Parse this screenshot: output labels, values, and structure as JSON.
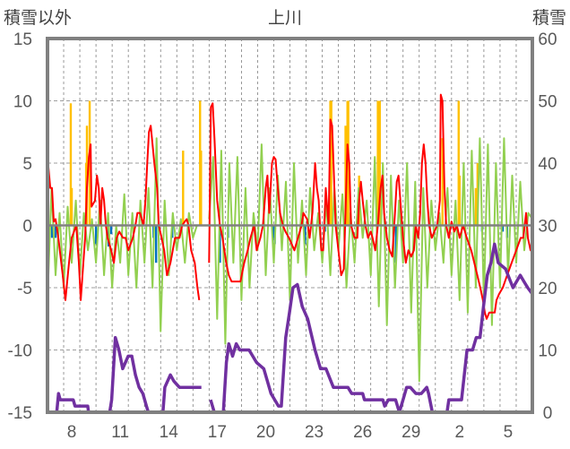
{
  "chart_data": {
    "type": "line",
    "title": "上川",
    "ylabel_left": "積雪以外",
    "ylabel_right": "積雪",
    "ylim_left": [
      -15,
      15
    ],
    "ylim_right": [
      0,
      60
    ],
    "yticks_left": [
      "15",
      "10",
      "5",
      "0",
      "-5",
      "-10",
      "-15"
    ],
    "yticks_right": [
      "60",
      "50",
      "40",
      "30",
      "20",
      "10",
      "0"
    ],
    "xlim_days": [
      0,
      30
    ],
    "xticks": [
      {
        "d": 1.5,
        "label": "8"
      },
      {
        "d": 4.5,
        "label": "11"
      },
      {
        "d": 7.5,
        "label": "14"
      },
      {
        "d": 10.5,
        "label": "17"
      },
      {
        "d": 13.5,
        "label": "20"
      },
      {
        "d": 16.5,
        "label": "23"
      },
      {
        "d": 19.5,
        "label": "26"
      },
      {
        "d": 22.5,
        "label": "29"
      },
      {
        "d": 25.5,
        "label": "2"
      },
      {
        "d": 28.5,
        "label": "5"
      }
    ],
    "grid": true,
    "colors": {
      "red": "#ff0000",
      "green": "#92d050",
      "orange": "#ffc000",
      "blue": "#0070c0",
      "purple": "#7030a0",
      "frame": "#808080"
    },
    "series": {
      "orange_bars": [
        [
          1.44,
          9.8
        ],
        [
          1.5,
          3
        ],
        [
          2.39,
          5
        ],
        [
          2.44,
          8
        ],
        [
          2.61,
          10
        ],
        [
          8.39,
          6
        ],
        [
          9.44,
          10
        ],
        [
          9.5,
          6
        ],
        [
          17.5,
          10
        ],
        [
          17.56,
          10
        ],
        [
          18.44,
          8
        ],
        [
          18.56,
          10
        ],
        [
          18.61,
          10
        ],
        [
          19.28,
          4
        ],
        [
          20.44,
          10
        ],
        [
          20.5,
          10
        ],
        [
          20.56,
          10
        ],
        [
          24.44,
          7
        ],
        [
          25.44,
          10
        ],
        [
          25.5,
          4
        ],
        [
          26.5,
          3
        ],
        [
          26.61,
          5
        ]
      ],
      "blue_bars": [
        [
          0.28,
          -1
        ],
        [
          0.5,
          -1
        ],
        [
          3.0,
          -1.5
        ],
        [
          3.78,
          -1.7
        ],
        [
          3.94,
          -0.7
        ],
        [
          6.56,
          -1
        ],
        [
          6.72,
          -3
        ],
        [
          7.72,
          -1
        ],
        [
          10.67,
          -3
        ],
        [
          11.17,
          -1
        ],
        [
          14.0,
          -1
        ],
        [
          14.06,
          -1.5
        ],
        [
          15.94,
          -1.5
        ],
        [
          17.17,
          -0.5
        ],
        [
          21.56,
          -3
        ],
        [
          26.89,
          -0.5
        ],
        [
          28.17,
          -0.5
        ],
        [
          28.44,
          -1
        ]
      ],
      "green": {
        "step": 0.25,
        "values": [
          -6,
          3,
          -4,
          1,
          -5,
          1.5,
          -3,
          2,
          -4,
          1,
          -2,
          0.5,
          -3,
          2,
          -4,
          1,
          -5,
          0,
          -3,
          2.5,
          -4,
          1,
          -5,
          2,
          -3,
          3,
          -5,
          7,
          -8.5,
          2,
          -4,
          1,
          -2,
          0.5,
          -3,
          1,
          -1,
          0,
          null,
          null,
          0.5,
          5.5,
          -7.5,
          6,
          -9.5,
          5,
          -3,
          5.5,
          -6,
          3,
          -5,
          1,
          -2,
          6.5,
          -4,
          3,
          -3,
          4,
          -2,
          3.5,
          -6,
          5,
          -3,
          2,
          -4,
          3,
          -2,
          1,
          -3,
          2,
          -4,
          3,
          -2,
          2.5,
          -5,
          1,
          -3,
          3,
          -1,
          2,
          -4,
          5.5,
          -6.5,
          5,
          -8,
          4,
          -5,
          2,
          -3,
          5,
          -7,
          3.5,
          -12.5,
          3,
          -5,
          2,
          -2,
          1,
          -3,
          3,
          -4,
          2,
          -6,
          5,
          -7,
          6,
          -5,
          7,
          -6,
          6.5,
          -8,
          5,
          -5,
          7,
          -4,
          4,
          -3,
          3.5,
          -2,
          1,
          0.5
        ]
      },
      "red": {
        "x": [
          0,
          0.17,
          0.28,
          0.39,
          0.5,
          0.67,
          0.94,
          1.11,
          1.33,
          1.5,
          1.78,
          1.94,
          2.06,
          2.22,
          2.33,
          2.44,
          2.56,
          2.67,
          2.72,
          2.94,
          3.06,
          3.17,
          3.28,
          3.39,
          3.5,
          3.61,
          3.72,
          3.94,
          4.11,
          4.28,
          4.44,
          4.67,
          4.83,
          5,
          5.28,
          5.44,
          5.56,
          5.72,
          5.94,
          6.06,
          6.17,
          6.28,
          6.39,
          6.5,
          6.61,
          6.78,
          6.89,
          7.06,
          7.22,
          7.39,
          7.61,
          7.89,
          8.17,
          8.33,
          8.44,
          8.61,
          8.72,
          8.89,
          9.11,
          9.28,
          9.39,
          9.7,
          10,
          10.11,
          10.22,
          10.33,
          10.5,
          10.67,
          10.83,
          11.06,
          11.22,
          11.39,
          11.61,
          11.94,
          12.17,
          12.39,
          12.56,
          12.78,
          12.94,
          13.17,
          13.33,
          13.5,
          13.61,
          13.72,
          13.89,
          14,
          14.11,
          14.22,
          14.39,
          14.56,
          14.72,
          14.94,
          15.11,
          15.28,
          15.5,
          15.72,
          15.83,
          16.06,
          16.22,
          16.39,
          16.56,
          16.67,
          16.78,
          16.94,
          17.06,
          17.22,
          17.39,
          17.5,
          17.61,
          17.72,
          17.83,
          18,
          18.17,
          18.33,
          18.44,
          18.56,
          18.67,
          18.78,
          19,
          19.17,
          19.28,
          19.39,
          19.5,
          19.67,
          19.83,
          20,
          20.11,
          20.28,
          20.44,
          20.61,
          20.72,
          20.83,
          21,
          21.17,
          21.33,
          21.5,
          21.61,
          21.72,
          21.83,
          22,
          22.17,
          22.33,
          22.5,
          22.67,
          22.78,
          22.94,
          23.06,
          23.17,
          23.28,
          23.39,
          23.5,
          23.61,
          23.78,
          23.94,
          24.11,
          24.28,
          24.33,
          24.44,
          24.56,
          24.67,
          24.83,
          25,
          25.17,
          25.33,
          25.5,
          25.72,
          25.94,
          26.22,
          26.5,
          26.78,
          26.94,
          27.06,
          27.17,
          27.33,
          27.5,
          27.67,
          27.78,
          27.94,
          28.17,
          28.44,
          28.72,
          29,
          29.28,
          29.44,
          29.61,
          29.72,
          29.89,
          30
        ],
        "y": [
          5.5,
          3,
          3,
          0.3,
          0.5,
          -1,
          -4,
          -6,
          -3,
          -1,
          0,
          -3,
          -6,
          -3,
          -1,
          3,
          5.5,
          6.5,
          1.5,
          2,
          4,
          3,
          0,
          3,
          2,
          0,
          -1,
          -2,
          -3,
          -1,
          -0.5,
          -1,
          -1,
          -2,
          -1,
          0,
          1,
          1,
          0,
          2,
          5,
          7.5,
          8,
          6.5,
          5,
          3,
          0,
          -1,
          -2,
          -4,
          -3,
          -1,
          -1,
          0,
          0.2,
          0.5,
          0,
          -2,
          -3,
          -5,
          -6,
          null,
          -3,
          9.5,
          9.8,
          7,
          2,
          0,
          -1,
          -3,
          -4,
          -4.5,
          -4.5,
          -4.5,
          -3,
          -2,
          -1,
          0,
          -2,
          -1,
          0,
          3,
          4,
          1,
          5,
          5.5,
          5.3,
          3.5,
          1,
          0,
          -0.5,
          -1,
          -1.5,
          -2,
          -1,
          0,
          1,
          0.5,
          -1,
          1,
          5,
          3,
          2,
          -2,
          -2,
          3,
          0,
          8.5,
          8,
          4,
          0,
          -2,
          -4,
          -3.5,
          1,
          6.5,
          5,
          0,
          -1,
          -1,
          2,
          3.5,
          2,
          0,
          -1,
          -0.5,
          -1,
          -2,
          0,
          3,
          4,
          1,
          -1,
          -2,
          -2.5,
          1,
          3.5,
          4,
          2,
          -1,
          -3,
          -2,
          -2.5,
          -2,
          0,
          -1,
          1,
          5,
          6.5,
          5,
          2,
          0,
          -1,
          -0.5,
          0,
          2,
          10.5,
          10,
          3,
          0,
          -1,
          0.3,
          -0.5,
          0,
          -1,
          0,
          -1,
          -2,
          -3.5,
          -5,
          -6,
          -7,
          -7.5,
          -7,
          -7,
          -7,
          -6,
          -5.5,
          -5,
          -4,
          -3,
          -2,
          -1,
          -1,
          1,
          -1,
          -2,
          -1
        ]
      },
      "purple_snow_depth": [
        [
          0,
          0
        ],
        [
          0.57,
          0
        ],
        [
          0.68,
          3
        ],
        [
          0.79,
          2
        ],
        [
          1.59,
          2
        ],
        [
          1.7,
          1
        ],
        [
          2.49,
          1
        ],
        [
          2.54,
          0
        ],
        [
          3.85,
          0
        ],
        [
          3.97,
          2
        ],
        [
          4.2,
          12
        ],
        [
          4.42,
          10
        ],
        [
          4.65,
          7
        ],
        [
          4.99,
          9
        ],
        [
          5.22,
          9
        ],
        [
          5.44,
          6
        ],
        [
          5.67,
          4
        ],
        [
          5.9,
          3
        ],
        [
          6.12,
          1
        ],
        [
          6.24,
          0
        ],
        [
          7.14,
          0
        ],
        [
          7.26,
          4
        ],
        [
          7.6,
          6
        ],
        [
          7.82,
          5
        ],
        [
          8.16,
          4
        ],
        [
          9.3,
          4
        ],
        [
          9.52,
          4
        ],
        [
          9.8,
          null
        ],
        [
          10.09,
          2
        ],
        [
          10.32,
          0
        ],
        [
          10.88,
          0
        ],
        [
          11.07,
          8
        ],
        [
          11.22,
          11
        ],
        [
          11.45,
          9
        ],
        [
          11.68,
          11
        ],
        [
          11.9,
          10
        ],
        [
          12.47,
          10
        ],
        [
          12.93,
          8
        ],
        [
          13.38,
          7
        ],
        [
          13.83,
          3
        ],
        [
          14.29,
          1
        ],
        [
          14.47,
          1
        ],
        [
          14.74,
          12
        ],
        [
          14.97,
          16
        ],
        [
          15.19,
          20
        ],
        [
          15.46,
          20.5
        ],
        [
          15.76,
          17
        ],
        [
          16.1,
          15
        ],
        [
          16.55,
          10
        ],
        [
          16.89,
          7
        ],
        [
          17.23,
          7
        ],
        [
          17.69,
          4
        ],
        [
          18.59,
          4
        ],
        [
          18.82,
          3
        ],
        [
          19.5,
          3
        ],
        [
          19.61,
          2
        ],
        [
          20.75,
          2
        ],
        [
          20.86,
          1
        ],
        [
          21.09,
          2
        ],
        [
          21.54,
          2
        ],
        [
          21.77,
          0
        ],
        [
          22,
          2
        ],
        [
          22.22,
          4
        ],
        [
          22.45,
          4
        ],
        [
          22.79,
          3
        ],
        [
          23.13,
          3
        ],
        [
          23.47,
          4
        ],
        [
          23.58,
          3
        ],
        [
          23.81,
          0
        ],
        [
          24.72,
          0
        ],
        [
          24.83,
          2
        ],
        [
          25.62,
          2
        ],
        [
          25.96,
          10
        ],
        [
          26.3,
          10
        ],
        [
          26.53,
          12
        ],
        [
          26.76,
          12
        ],
        [
          26.98,
          17
        ],
        [
          27.21,
          22
        ],
        [
          27.44,
          24
        ],
        [
          27.66,
          27
        ],
        [
          27.89,
          24
        ],
        [
          28.34,
          23
        ],
        [
          28.8,
          20
        ],
        [
          29.25,
          22
        ],
        [
          29.48,
          21
        ],
        [
          29.71,
          20
        ],
        [
          30,
          19
        ]
      ]
    }
  }
}
